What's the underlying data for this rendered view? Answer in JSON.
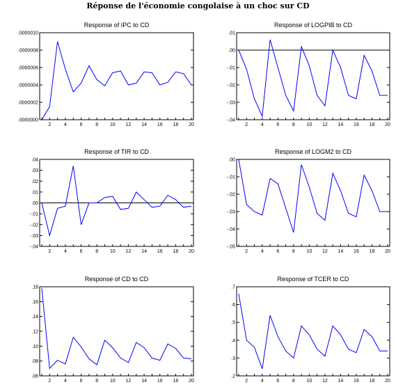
{
  "title": "Réponse de l'économie congolaise à un choc sur CD",
  "series_color": "#0000ff",
  "zero_line_color": "#000000",
  "chart_data": [
    {
      "type": "line",
      "title": "Response of IPC to CD",
      "x": [
        1,
        2,
        3,
        4,
        5,
        6,
        7,
        8,
        9,
        10,
        11,
        12,
        13,
        14,
        15,
        16,
        17,
        18,
        19,
        20
      ],
      "values": [
        0.0,
        1.5e-07,
        9e-07,
        5.8e-07,
        3.2e-07,
        4.2e-07,
        6.2e-07,
        4.6e-07,
        3.9e-07,
        5.4e-07,
        5.6e-07,
        4e-07,
        4.2e-07,
        5.5e-07,
        5.4e-07,
        4e-07,
        4.3e-07,
        5.5e-07,
        5.3e-07,
        4e-07
      ],
      "ylim": [
        0,
        1e-06
      ],
      "y_ticks": [
        0,
        2e-07,
        4e-07,
        6e-07,
        8e-07,
        1e-06
      ],
      "y_tick_labels": [
        ".0000000",
        ".0000002",
        ".0000004",
        ".0000006",
        ".0000008",
        ".0000010"
      ],
      "x_tick_labels": [
        "2",
        "4",
        "6",
        "8",
        "10",
        "12",
        "14",
        "16",
        "18",
        "20"
      ],
      "zero_line": false
    },
    {
      "type": "line",
      "title": "Response of LOGPIB to CD",
      "x": [
        1,
        2,
        3,
        4,
        5,
        6,
        7,
        8,
        9,
        10,
        11,
        12,
        13,
        14,
        15,
        16,
        17,
        18,
        19,
        20
      ],
      "values": [
        0.0,
        -0.011,
        -0.028,
        -0.038,
        0.006,
        -0.01,
        -0.026,
        -0.035,
        0.002,
        -0.009,
        -0.026,
        -0.032,
        0.0,
        -0.01,
        -0.026,
        -0.028,
        -0.003,
        -0.012,
        -0.026,
        -0.026
      ],
      "ylim": [
        -0.04,
        0.01
      ],
      "y_ticks": [
        -0.04,
        -0.03,
        -0.02,
        -0.01,
        0.0,
        0.01
      ],
      "y_tick_labels": [
        "-.04",
        "-.03",
        "-.02",
        "-.01",
        ".00",
        ".01"
      ],
      "x_tick_labels": [
        "2",
        "4",
        "6",
        "8",
        "10",
        "12",
        "14",
        "16",
        "18",
        "20"
      ],
      "zero_line": true
    },
    {
      "type": "line",
      "title": "Response of TIR to CD",
      "x": [
        1,
        2,
        3,
        4,
        5,
        6,
        7,
        8,
        9,
        10,
        11,
        12,
        13,
        14,
        15,
        16,
        17,
        18,
        19,
        20
      ],
      "values": [
        0.0,
        -0.03,
        -0.005,
        -0.003,
        0.034,
        -0.02,
        0.0,
        0.0,
        0.005,
        0.006,
        -0.006,
        -0.005,
        0.01,
        0.003,
        -0.004,
        -0.003,
        0.007,
        0.003,
        -0.004,
        -0.003
      ],
      "ylim": [
        -0.04,
        0.04
      ],
      "y_ticks": [
        -0.04,
        -0.03,
        -0.02,
        -0.01,
        0.0,
        0.01,
        0.02,
        0.03,
        0.04
      ],
      "y_tick_labels": [
        "-.04",
        "-.03",
        "-.02",
        "-.01",
        ".00",
        ".01",
        ".02",
        ".03",
        ".04"
      ],
      "x_tick_labels": [
        "2",
        "4",
        "6",
        "8",
        "10",
        "12",
        "14",
        "16",
        "18",
        "20"
      ],
      "zero_line": true
    },
    {
      "type": "line",
      "title": "Response of LOGM2 to CD",
      "x": [
        1,
        2,
        3,
        4,
        5,
        6,
        7,
        8,
        9,
        10,
        11,
        12,
        13,
        14,
        15,
        16,
        17,
        18,
        19,
        20
      ],
      "values": [
        0.0,
        -0.026,
        -0.03,
        -0.032,
        -0.011,
        -0.014,
        -0.028,
        -0.042,
        -0.003,
        -0.016,
        -0.031,
        -0.035,
        -0.008,
        -0.018,
        -0.031,
        -0.033,
        -0.009,
        -0.018,
        -0.03,
        -0.03
      ],
      "ylim": [
        -0.05,
        0.0
      ],
      "y_ticks": [
        -0.05,
        -0.04,
        -0.03,
        -0.02,
        -0.01,
        0.0
      ],
      "y_tick_labels": [
        "-.05",
        "-.04",
        "-.03",
        "-.02",
        "-.01",
        ".00"
      ],
      "x_tick_labels": [
        "2",
        "4",
        "6",
        "8",
        "10",
        "12",
        "14",
        "16",
        "18",
        "20"
      ],
      "zero_line": false
    },
    {
      "type": "line",
      "title": "Response of CD to CD",
      "x": [
        1,
        2,
        3,
        4,
        5,
        6,
        7,
        8,
        9,
        10,
        11,
        12,
        13,
        14,
        15,
        16,
        17,
        18,
        19,
        20
      ],
      "values": [
        0.178,
        0.07,
        0.081,
        0.076,
        0.112,
        0.099,
        0.083,
        0.075,
        0.108,
        0.098,
        0.084,
        0.078,
        0.105,
        0.098,
        0.084,
        0.081,
        0.103,
        0.097,
        0.084,
        0.083
      ],
      "ylim": [
        0.06,
        0.18
      ],
      "y_ticks": [
        0.06,
        0.08,
        0.1,
        0.12,
        0.14,
        0.16,
        0.18
      ],
      "y_tick_labels": [
        ".06",
        ".08",
        ".10",
        ".12",
        ".14",
        ".16",
        ".18"
      ],
      "x_tick_labels": [
        "2",
        "4",
        "6",
        "8",
        "10",
        "12",
        "14",
        "16",
        "18",
        "20"
      ],
      "zero_line": false
    },
    {
      "type": "line",
      "title": "Response of TCER to CD",
      "x": [
        1,
        2,
        3,
        4,
        5,
        6,
        7,
        8,
        9,
        10,
        11,
        12,
        13,
        14,
        15,
        16,
        17,
        18,
        19,
        20
      ],
      "values": [
        0.66,
        0.4,
        0.36,
        0.24,
        0.54,
        0.42,
        0.34,
        0.3,
        0.48,
        0.43,
        0.35,
        0.31,
        0.48,
        0.43,
        0.35,
        0.33,
        0.46,
        0.42,
        0.34,
        0.34
      ],
      "ylim": [
        0.2,
        0.7
      ],
      "y_ticks": [
        0.2,
        0.3,
        0.4,
        0.5,
        0.6,
        0.7
      ],
      "y_tick_labels": [
        ".2",
        ".3",
        ".4",
        ".5",
        ".6",
        ".7"
      ],
      "x_tick_labels": [
        "2",
        "4",
        "6",
        "8",
        "10",
        "12",
        "14",
        "16",
        "18",
        "20"
      ],
      "zero_line": false
    }
  ]
}
